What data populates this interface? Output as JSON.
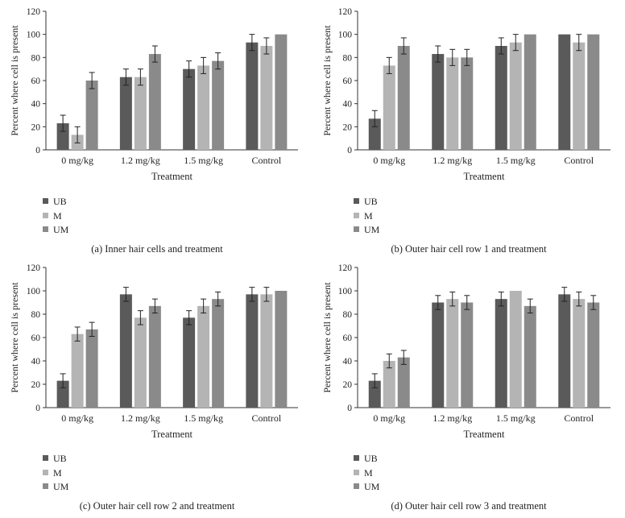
{
  "colors": {
    "UB": "#5a5a5a",
    "M": "#b4b4b4",
    "UM": "#8a8a8a",
    "axis": "#333333",
    "errorbar": "#222222"
  },
  "chart_data": [
    {
      "type": "bar",
      "caption": "(a)  Inner hair cells and treatment",
      "xlabel": "Treatment",
      "ylabel": "Percent where cell is present",
      "ylim": [
        0,
        120
      ],
      "yticks": [
        "0",
        "20",
        "40",
        "60",
        "80",
        "100",
        "120"
      ],
      "categories": [
        "0 mg/kg",
        "1.2 mg/kg",
        "1.5 mg/kg",
        "Control"
      ],
      "legend": [
        "UB",
        "M",
        "UM"
      ],
      "series": [
        {
          "name": "UB",
          "values": [
            23,
            63,
            70,
            93
          ],
          "errors": [
            7,
            7,
            7,
            7
          ]
        },
        {
          "name": "M",
          "values": [
            13,
            63,
            73,
            90
          ],
          "errors": [
            7,
            7,
            7,
            7
          ]
        },
        {
          "name": "UM",
          "values": [
            60,
            83,
            77,
            100
          ],
          "errors": [
            7,
            7,
            7,
            0
          ]
        }
      ]
    },
    {
      "type": "bar",
      "caption": "(b)  Outer hair cell row 1 and treatment",
      "xlabel": "Treatment",
      "ylabel": "Percent where cell is present",
      "ylim": [
        0,
        120
      ],
      "yticks": [
        "0",
        "20",
        "40",
        "60",
        "80",
        "100",
        "120"
      ],
      "categories": [
        "0 mg/kg",
        "1.2 mg/kg",
        "1.5 mg/kg",
        "Control"
      ],
      "legend": [
        "UB",
        "M",
        "UM"
      ],
      "series": [
        {
          "name": "UB",
          "values": [
            27,
            83,
            90,
            100
          ],
          "errors": [
            7,
            7,
            7,
            0
          ]
        },
        {
          "name": "M",
          "values": [
            73,
            80,
            93,
            93
          ],
          "errors": [
            7,
            7,
            7,
            7
          ]
        },
        {
          "name": "UM",
          "values": [
            90,
            80,
            100,
            100
          ],
          "errors": [
            7,
            7,
            0,
            0
          ]
        }
      ]
    },
    {
      "type": "bar",
      "caption": "(c)  Outer hair cell row 2 and treatment",
      "xlabel": "Treatment",
      "ylabel": "Percent where cell is present",
      "ylim": [
        0,
        120
      ],
      "yticks": [
        "0",
        "20",
        "40",
        "60",
        "80",
        "100",
        "120"
      ],
      "categories": [
        "0 mg/kg",
        "1.2 mg/kg",
        "1.5 mg/kg",
        "Control"
      ],
      "legend": [
        "UB",
        "M",
        "UM"
      ],
      "series": [
        {
          "name": "UB",
          "values": [
            23,
            97,
            77,
            97
          ],
          "errors": [
            6,
            6,
            6,
            6
          ]
        },
        {
          "name": "M",
          "values": [
            63,
            77,
            87,
            97
          ],
          "errors": [
            6,
            6,
            6,
            6
          ]
        },
        {
          "name": "UM",
          "values": [
            67,
            87,
            93,
            100
          ],
          "errors": [
            6,
            6,
            6,
            0
          ]
        }
      ]
    },
    {
      "type": "bar",
      "caption": "(d)  Outer hair cell row 3 and treatment",
      "xlabel": "Treatment",
      "ylabel": "Percent where cell is present",
      "ylim": [
        0,
        120
      ],
      "yticks": [
        "0",
        "20",
        "40",
        "60",
        "80",
        "100",
        "120"
      ],
      "categories": [
        "0 mg/kg",
        "1.2 mg/kg",
        "1.5 mg/kg",
        "Control"
      ],
      "legend": [
        "UB",
        "M",
        "UM"
      ],
      "series": [
        {
          "name": "UB",
          "values": [
            23,
            90,
            93,
            97
          ],
          "errors": [
            6,
            6,
            6,
            6
          ]
        },
        {
          "name": "M",
          "values": [
            40,
            93,
            100,
            93
          ],
          "errors": [
            6,
            6,
            0,
            6
          ]
        },
        {
          "name": "UM",
          "values": [
            43,
            90,
            87,
            90
          ],
          "errors": [
            6,
            6,
            6,
            6
          ]
        }
      ]
    }
  ]
}
